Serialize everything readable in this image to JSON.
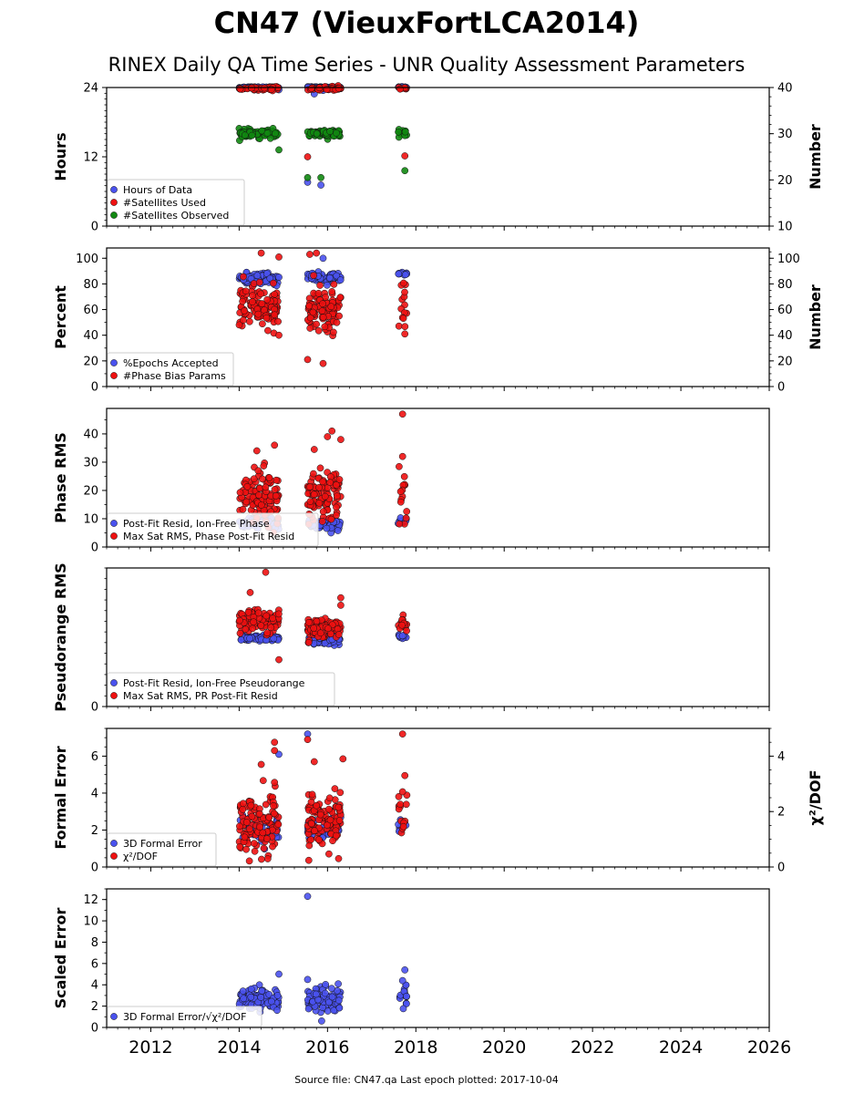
{
  "title": "CN47 (VieuxFortLCA2014)",
  "subtitle": "RINEX Daily QA Time Series - UNR Quality Assessment Parameters",
  "footer": "Source file: CN47.qa Last epoch plotted: 2017-10-04",
  "colors": {
    "blue": "#4a52ee",
    "red": "#ee1111",
    "green": "#118811"
  },
  "x_axis": {
    "ticks": [
      2012,
      2014,
      2016,
      2018,
      2020,
      2022,
      2024,
      2026
    ],
    "xlim": [
      2011.0,
      2026.0
    ]
  },
  "chart_data": [
    {
      "type": "scatter",
      "ylabel": "Hours",
      "ylabel_right": "Number",
      "ylim": [
        0,
        24
      ],
      "yticks": [
        0,
        12,
        24
      ],
      "ylim_right": [
        10,
        40
      ],
      "yticks_right": [
        10,
        20,
        30,
        40
      ],
      "series": [
        {
          "name": "Hours of Data",
          "color": "#4a52ee",
          "axis": "left",
          "clusters": [
            {
              "x0": 2014.0,
              "x1": 2014.9,
              "yc": 24,
              "spread": 0.1,
              "n": 70
            },
            {
              "x0": 2015.55,
              "x1": 2016.3,
              "yc": 24,
              "spread": 0.1,
              "n": 60
            },
            {
              "x0": 2017.6,
              "x1": 2017.8,
              "yc": 24,
              "spread": 0.1,
              "n": 10
            }
          ],
          "points": [
            [
              2015.7,
              22.9
            ],
            [
              2015.55,
              7.6
            ],
            [
              2015.85,
              7.1
            ],
            [
              2015.9,
              23.5
            ],
            [
              2014.9,
              23.6
            ]
          ]
        },
        {
          "name": "#Satellites Used",
          "color": "#ee1111",
          "axis": "right",
          "clusters": [
            {
              "x0": 2014.0,
              "x1": 2014.9,
              "yc": 39.8,
              "spread": 0.3,
              "n": 40
            },
            {
              "x0": 2015.55,
              "x1": 2016.3,
              "yc": 39.8,
              "spread": 0.3,
              "n": 40
            },
            {
              "x0": 2017.6,
              "x1": 2017.8,
              "yc": 39.8,
              "spread": 0.2,
              "n": 8
            }
          ],
          "points": [
            [
              2015.55,
              25.0
            ],
            [
              2017.75,
              25.2
            ]
          ]
        },
        {
          "name": "#Satellites Observed",
          "color": "#118811",
          "axis": "right",
          "clusters": [
            {
              "x0": 2014.0,
              "x1": 2014.9,
              "yc": 30.0,
              "spread": 0.6,
              "n": 80
            },
            {
              "x0": 2015.55,
              "x1": 2016.3,
              "yc": 30.0,
              "spread": 0.6,
              "n": 70
            },
            {
              "x0": 2017.6,
              "x1": 2017.8,
              "yc": 30.0,
              "spread": 0.6,
              "n": 10
            }
          ],
          "points": [
            [
              2014.9,
              26.5
            ],
            [
              2015.55,
              20.5
            ],
            [
              2015.85,
              20.5
            ],
            [
              2017.75,
              22.0
            ]
          ]
        }
      ]
    },
    {
      "type": "scatter",
      "ylabel": "Percent",
      "ylabel_right": "Number",
      "ylim": [
        0,
        108
      ],
      "yticks": [
        0,
        20,
        40,
        60,
        80,
        100
      ],
      "ylim_right": [
        0,
        108
      ],
      "yticks_right": [
        0,
        20,
        40,
        60,
        80,
        100
      ],
      "series": [
        {
          "name": "%Epochs Accepted",
          "color": "#4a52ee",
          "axis": "left",
          "clusters": [
            {
              "x0": 2014.0,
              "x1": 2014.9,
              "yc": 84,
              "spread": 3,
              "n": 80
            },
            {
              "x0": 2015.55,
              "x1": 2016.3,
              "yc": 85,
              "spread": 3,
              "n": 70
            },
            {
              "x0": 2017.6,
              "x1": 2017.8,
              "yc": 88,
              "spread": 1,
              "n": 10
            }
          ],
          "points": [
            [
              2015.9,
              100
            ]
          ]
        },
        {
          "name": "#Phase Bias Params",
          "color": "#ee1111",
          "axis": "right",
          "clusters": [
            {
              "x0": 2014.0,
              "x1": 2014.9,
              "yc": 62,
              "spread": 11,
              "n": 110
            },
            {
              "x0": 2015.55,
              "x1": 2016.3,
              "yc": 60,
              "spread": 12,
              "n": 100
            },
            {
              "x0": 2017.6,
              "x1": 2017.8,
              "yc": 62,
              "spread": 12,
              "n": 14
            }
          ],
          "points": [
            [
              2014.5,
              104
            ],
            [
              2014.9,
              101
            ],
            [
              2015.6,
              103
            ],
            [
              2015.75,
              104
            ],
            [
              2014.9,
              40
            ],
            [
              2015.55,
              21
            ],
            [
              2015.9,
              18
            ],
            [
              2017.75,
              41
            ]
          ]
        }
      ]
    },
    {
      "type": "scatter",
      "ylabel": "Phase RMS",
      "ylim": [
        0,
        49
      ],
      "yticks": [
        0,
        10,
        20,
        30,
        40
      ],
      "series": [
        {
          "name": "Post-Fit Resid, Ion-Free Phase",
          "color": "#4a52ee",
          "axis": "left",
          "clusters": [
            {
              "x0": 2014.0,
              "x1": 2014.9,
              "yc": 8.5,
              "spread": 1.5,
              "n": 60
            },
            {
              "x0": 2015.55,
              "x1": 2016.3,
              "yc": 8.0,
              "spread": 1.5,
              "n": 60
            },
            {
              "x0": 2017.6,
              "x1": 2017.8,
              "yc": 9.0,
              "spread": 1.0,
              "n": 10
            }
          ],
          "points": []
        },
        {
          "name": "Max Sat RMS, Phase Post-Fit Resid",
          "color": "#ee1111",
          "axis": "left",
          "clusters": [
            {
              "x0": 2014.0,
              "x1": 2014.9,
              "yc": 18,
              "spread": 7,
              "n": 110
            },
            {
              "x0": 2015.55,
              "x1": 2016.3,
              "yc": 17,
              "spread": 7,
              "n": 100
            },
            {
              "x0": 2017.6,
              "x1": 2017.8,
              "yc": 18,
              "spread": 7,
              "n": 14
            }
          ],
          "points": [
            [
              2014.4,
              34
            ],
            [
              2014.8,
              36
            ],
            [
              2015.7,
              34.5
            ],
            [
              2016.1,
              41
            ],
            [
              2016.3,
              38
            ],
            [
              2016.0,
              39
            ],
            [
              2017.7,
              47
            ],
            [
              2017.7,
              32
            ]
          ]
        }
      ]
    },
    {
      "type": "scatter",
      "ylabel": "Pseudorange RMS",
      "ylim": [
        0,
        130
      ],
      "yticks": [
        0
      ],
      "series": [
        {
          "name": "Post-Fit Resid, Ion-Free Pseudorange",
          "color": "#4a52ee",
          "axis": "left",
          "clusters": [
            {
              "x0": 2014.0,
              "x1": 2014.9,
              "yc": 64,
              "spread": 2,
              "n": 80
            },
            {
              "x0": 2015.55,
              "x1": 2016.3,
              "yc": 62,
              "spread": 2.5,
              "n": 70
            },
            {
              "x0": 2017.6,
              "x1": 2017.8,
              "yc": 66,
              "spread": 1.5,
              "n": 10
            }
          ],
          "points": []
        },
        {
          "name": "Max Sat RMS, PR Post-Fit Resid",
          "color": "#ee1111",
          "axis": "left",
          "clusters": [
            {
              "x0": 2014.0,
              "x1": 2014.9,
              "yc": 80,
              "spread": 7,
              "n": 100
            },
            {
              "x0": 2015.55,
              "x1": 2016.3,
              "yc": 74,
              "spread": 6,
              "n": 100
            },
            {
              "x0": 2017.6,
              "x1": 2017.8,
              "yc": 78,
              "spread": 6,
              "n": 14
            }
          ],
          "points": [
            [
              2014.6,
              126
            ],
            [
              2014.25,
              107
            ],
            [
              2014.9,
              44
            ],
            [
              2016.3,
              95
            ],
            [
              2016.3,
              102
            ]
          ]
        }
      ]
    },
    {
      "type": "scatter",
      "ylabel": "Formal Error",
      "ylabel_right": "χ²/DOF",
      "ylim": [
        0,
        7.5
      ],
      "yticks": [
        0,
        2,
        4,
        6
      ],
      "ylim_right": [
        0,
        5.0
      ],
      "yticks_right": [
        0,
        2,
        4
      ],
      "series": [
        {
          "name": "3D Formal Error",
          "color": "#4a52ee",
          "axis": "left",
          "clusters": [
            {
              "x0": 2014.0,
              "x1": 2014.9,
              "yc": 2.0,
              "spread": 0.5,
              "n": 40
            },
            {
              "x0": 2015.55,
              "x1": 2016.3,
              "yc": 2.0,
              "spread": 0.5,
              "n": 40
            },
            {
              "x0": 2017.6,
              "x1": 2017.8,
              "yc": 2.0,
              "spread": 0.4,
              "n": 8
            }
          ],
          "points": [
            [
              2015.55,
              7.2
            ],
            [
              2014.9,
              6.1
            ]
          ]
        },
        {
          "name": "χ²/DOF",
          "color": "#ee1111",
          "axis": "right",
          "clusters": [
            {
              "x0": 2014.0,
              "x1": 2014.9,
              "yc": 1.6,
              "spread": 0.8,
              "n": 110
            },
            {
              "x0": 2015.55,
              "x1": 2016.3,
              "yc": 1.6,
              "spread": 0.8,
              "n": 110
            },
            {
              "x0": 2017.6,
              "x1": 2017.8,
              "yc": 1.9,
              "spread": 0.8,
              "n": 14
            }
          ],
          "points": [
            [
              2014.8,
              4.5
            ],
            [
              2014.8,
              4.2
            ],
            [
              2014.5,
              3.7
            ],
            [
              2015.55,
              4.6
            ],
            [
              2015.7,
              3.8
            ],
            [
              2016.35,
              3.9
            ],
            [
              2017.7,
              4.8
            ],
            [
              2017.75,
              3.3
            ]
          ]
        }
      ]
    },
    {
      "type": "scatter",
      "ylabel": "Scaled Error",
      "ylim": [
        0,
        13
      ],
      "yticks": [
        0,
        2,
        4,
        6,
        8,
        10,
        12
      ],
      "series": [
        {
          "name": "3D Formal Error/√χ²/DOF",
          "color": "#4a52ee",
          "axis": "left",
          "clusters": [
            {
              "x0": 2014.0,
              "x1": 2014.9,
              "yc": 2.6,
              "spread": 0.8,
              "n": 100
            },
            {
              "x0": 2015.55,
              "x1": 2016.3,
              "yc": 2.5,
              "spread": 0.9,
              "n": 100
            },
            {
              "x0": 2017.6,
              "x1": 2017.8,
              "yc": 2.8,
              "spread": 0.8,
              "n": 14
            }
          ],
          "points": [
            [
              2015.55,
              12.3
            ],
            [
              2014.9,
              5.0
            ],
            [
              2017.75,
              5.4
            ],
            [
              2015.55,
              4.5
            ],
            [
              2017.7,
              4.4
            ]
          ]
        }
      ]
    }
  ]
}
